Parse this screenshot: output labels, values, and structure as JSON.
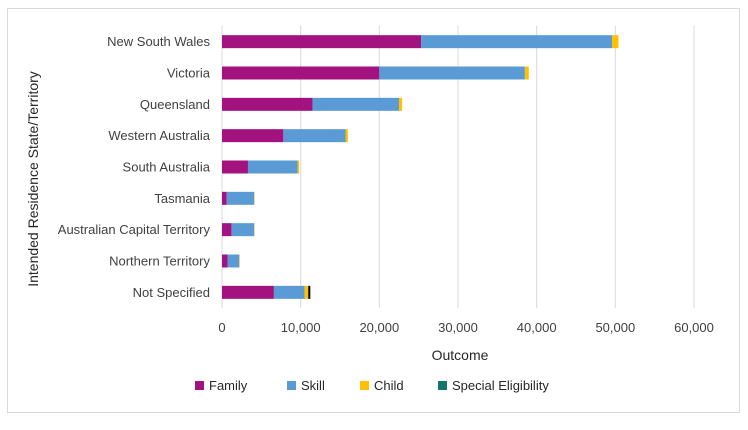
{
  "chart_data": {
    "type": "bar",
    "orientation": "horizontal",
    "stacked": true,
    "categories": [
      "New South Wales",
      "Victoria",
      "Queensland",
      "Western Australia",
      "South Australia",
      "Tasmania",
      "Australian Capital Territory",
      "Northern Territory",
      "Not Specified"
    ],
    "series": [
      {
        "name": "Family",
        "color": "#a3137f",
        "values": [
          25300,
          20000,
          11500,
          7800,
          3300,
          600,
          1200,
          700,
          6600
        ]
      },
      {
        "name": "Skill",
        "color": "#5b9bd5",
        "values": [
          24300,
          18500,
          11000,
          7900,
          6300,
          3500,
          2900,
          1500,
          3900
        ]
      },
      {
        "name": "Child",
        "color": "#ffc000",
        "values": [
          800,
          500,
          400,
          300,
          200,
          50,
          50,
          50,
          600
        ]
      },
      {
        "name": "Special Eligibility",
        "color": "#17736b",
        "values": [
          0,
          0,
          0,
          0,
          0,
          0,
          0,
          0,
          0
        ]
      }
    ],
    "xlabel": "Outcome",
    "ylabel": "Intended Residence State/Territory",
    "xlim": [
      0,
      60000
    ],
    "xticks": [
      0,
      10000,
      20000,
      30000,
      40000,
      50000,
      60000
    ],
    "xtick_labels": [
      "0",
      "10,000",
      "20,000",
      "30,000",
      "40,000",
      "50,000",
      "60,000"
    ],
    "grid": "vertical",
    "legend_position": "bottom",
    "annotation_mark": {
      "category": "Not Specified",
      "x": 11100,
      "color": "#000000"
    }
  }
}
